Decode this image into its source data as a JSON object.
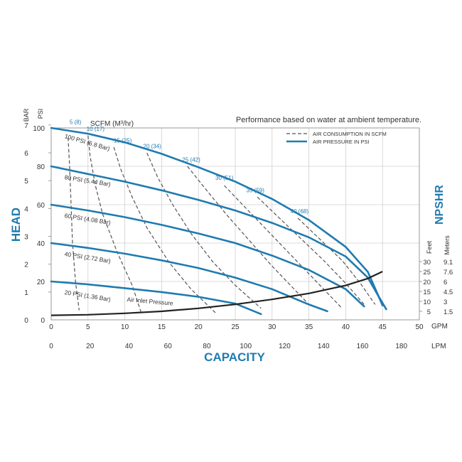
{
  "chart_data": {
    "type": "line",
    "note": "Performance based on water at ambient temperature.",
    "xlabel": "CAPACITY",
    "ylabel": "HEAD",
    "y2label": "NPSHR",
    "colors": {
      "pressure": "#1f7bb0",
      "air": "#555555",
      "npshr": "#222222",
      "grid": "#cfcfcf",
      "accent": "#1f7bb0"
    },
    "x_gpm": {
      "unit": "GPM",
      "range": [
        0,
        50
      ],
      "ticks": [
        "0",
        "5",
        "10",
        "15",
        "20",
        "25",
        "30",
        "35",
        "40",
        "45",
        "50"
      ]
    },
    "x_lpm": {
      "unit": "LPM",
      "range": [
        0,
        190
      ],
      "ticks": [
        "0",
        "20",
        "40",
        "60",
        "80",
        "100",
        "120",
        "140",
        "160",
        "180"
      ]
    },
    "y_psi": {
      "unit": "PSI",
      "range": [
        0,
        100
      ],
      "ticks": [
        "0",
        "20",
        "40",
        "60",
        "80",
        "100"
      ]
    },
    "y_bar": {
      "unit": "BAR",
      "range": [
        0,
        7
      ],
      "ticks": [
        "0",
        "1",
        "2",
        "3",
        "4",
        "5",
        "6",
        "7"
      ]
    },
    "npshr_axis": {
      "feet_label": "Feet",
      "meters_label": "Meters",
      "feet_ticks": [
        "5",
        "10",
        "15",
        "20",
        "25",
        "30"
      ],
      "meter_ticks": [
        "1.5",
        "3",
        "4.5",
        "6",
        "7.6",
        "9.1"
      ]
    },
    "legend": {
      "air": "AIR CONSUMPTION IN SCFM",
      "pressure": "AIR PRESSURE IN PSI"
    },
    "scfm_title": "SCFM (M³/hr)",
    "air_inlet_label": "Air Inlet Pressure",
    "pressure_series": [
      {
        "name": "100 PSI (6.8 Bar)",
        "points": [
          [
            0,
            100
          ],
          [
            5,
            97
          ],
          [
            10,
            92.5
          ],
          [
            15,
            86.5
          ],
          [
            20,
            79.5
          ],
          [
            25,
            72
          ],
          [
            30,
            63
          ],
          [
            35,
            52
          ],
          [
            40,
            38
          ],
          [
            43,
            25
          ],
          [
            44.5,
            12
          ],
          [
            45.5,
            5.5
          ]
        ]
      },
      {
        "name": "80 PSI (5.44 Bar)",
        "points": [
          [
            0,
            80
          ],
          [
            5,
            76
          ],
          [
            10,
            72
          ],
          [
            15,
            67.5
          ],
          [
            20,
            62.5
          ],
          [
            25,
            57
          ],
          [
            30,
            50.5
          ],
          [
            35,
            43
          ],
          [
            40,
            33
          ],
          [
            43,
            22
          ],
          [
            44.5,
            12
          ],
          [
            45,
            7.5
          ]
        ]
      },
      {
        "name": "60 PSI (4.08 Bar)",
        "points": [
          [
            0,
            60
          ],
          [
            5,
            57
          ],
          [
            10,
            53.5
          ],
          [
            15,
            49.5
          ],
          [
            20,
            45
          ],
          [
            25,
            40
          ],
          [
            30,
            33.5
          ],
          [
            35,
            26
          ],
          [
            40,
            16
          ],
          [
            42.5,
            7
          ]
        ]
      },
      {
        "name": "40 PSI (2.72 Bar)",
        "points": [
          [
            0,
            40
          ],
          [
            5,
            37.5
          ],
          [
            10,
            34.5
          ],
          [
            15,
            31
          ],
          [
            20,
            27
          ],
          [
            25,
            22
          ],
          [
            30,
            16
          ],
          [
            35,
            8
          ],
          [
            37.5,
            4.5
          ]
        ]
      },
      {
        "name": "20 PSI (1.36 Bar)",
        "points": [
          [
            0,
            20
          ],
          [
            5,
            18.5
          ],
          [
            10,
            16.5
          ],
          [
            15,
            14.5
          ],
          [
            20,
            12
          ],
          [
            25,
            8.5
          ],
          [
            28.5,
            3
          ]
        ]
      }
    ],
    "air_series": [
      {
        "name": "5 (8)",
        "label_at": [
          2.5,
          102
        ],
        "points": [
          [
            2.3,
            95
          ],
          [
            2.5,
            80
          ],
          [
            2.7,
            60
          ],
          [
            2.9,
            40
          ],
          [
            3.3,
            20
          ],
          [
            3.8,
            5
          ]
        ]
      },
      {
        "name": "10 (17)",
        "label_at": [
          4.8,
          98.5
        ],
        "points": [
          [
            5,
            96
          ],
          [
            5.3,
            85
          ],
          [
            6,
            70
          ],
          [
            7,
            55
          ],
          [
            9,
            35
          ],
          [
            11,
            18
          ],
          [
            12.2,
            4
          ]
        ]
      },
      {
        "name": "15 (25)",
        "label_at": [
          8.5,
          92.5
        ],
        "points": [
          [
            8.5,
            90
          ],
          [
            9.5,
            78
          ],
          [
            11,
            64
          ],
          [
            13,
            48
          ],
          [
            16,
            30
          ],
          [
            19,
            16
          ],
          [
            22.5,
            3
          ]
        ]
      },
      {
        "name": "20 (34)",
        "label_at": [
          12.5,
          89.5
        ],
        "points": [
          [
            13,
            87
          ],
          [
            14.5,
            74
          ],
          [
            16.5,
            60
          ],
          [
            19,
            45
          ],
          [
            22,
            30
          ],
          [
            25,
            18
          ],
          [
            28.5,
            6
          ]
        ]
      },
      {
        "name": "25 (42)",
        "label_at": [
          17.8,
          82.5
        ],
        "points": [
          [
            18.5,
            80
          ],
          [
            21,
            68
          ],
          [
            24,
            54
          ],
          [
            27,
            41
          ],
          [
            30,
            28
          ],
          [
            33,
            16
          ],
          [
            35,
            8
          ]
        ]
      },
      {
        "name": "30 (51)",
        "label_at": [
          22.3,
          73
        ],
        "points": [
          [
            23.5,
            70
          ],
          [
            26.5,
            58
          ],
          [
            29.5,
            46
          ],
          [
            32.5,
            34
          ],
          [
            35.5,
            22
          ],
          [
            38.5,
            10
          ],
          [
            39.5,
            6
          ]
        ]
      },
      {
        "name": "35 (59)",
        "label_at": [
          26.5,
          66.5
        ],
        "points": [
          [
            28,
            64
          ],
          [
            31,
            53
          ],
          [
            34,
            42
          ],
          [
            37,
            31
          ],
          [
            40,
            19
          ],
          [
            42.5,
            8
          ]
        ]
      },
      {
        "name": "40 (68)",
        "label_at": [
          32.5,
          55.5
        ],
        "points": [
          [
            33.5,
            53
          ],
          [
            36.5,
            42
          ],
          [
            39.5,
            31
          ],
          [
            42,
            19
          ],
          [
            44,
            8
          ]
        ]
      }
    ],
    "npshr_points": [
      [
        0,
        3
      ],
      [
        5,
        3.3
      ],
      [
        10,
        4
      ],
      [
        15,
        5
      ],
      [
        20,
        6.5
      ],
      [
        25,
        8.5
      ],
      [
        30,
        11
      ],
      [
        35,
        14
      ],
      [
        40,
        18
      ],
      [
        43,
        21.5
      ],
      [
        45,
        25
      ]
    ]
  }
}
